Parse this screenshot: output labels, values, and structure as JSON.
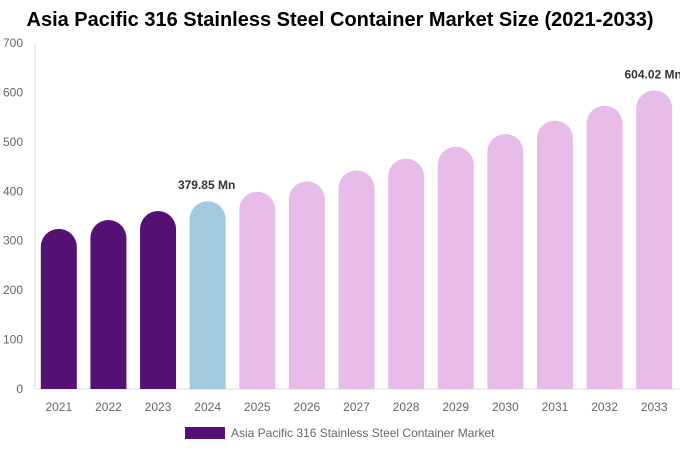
{
  "chart_data": {
    "type": "bar",
    "title": "Asia Pacific 316 Stainless Steel Container Market Size (2021-2033)",
    "categories": [
      "2021",
      "2022",
      "2023",
      "2024",
      "2025",
      "2026",
      "2027",
      "2028",
      "2029",
      "2030",
      "2031",
      "2032",
      "2033"
    ],
    "series": [
      {
        "name": "Asia Pacific 316 Stainless Steel Container Market",
        "values": [
          324,
          342,
          360,
          379.85,
          399,
          420,
          442,
          466,
          490,
          516,
          543,
          573,
          604.02
        ]
      }
    ],
    "data_labels": {
      "3": "379.85 Mn",
      "12": "604.02 Mn"
    },
    "ylim": [
      0,
      700
    ],
    "yticks": [
      0,
      100,
      200,
      300,
      400,
      500,
      600,
      700
    ],
    "grid": false,
    "legend_position": "bottom",
    "colors": {
      "historical": "#541173",
      "base_year": "#a3c9de",
      "forecast": "#e7bce9"
    }
  }
}
